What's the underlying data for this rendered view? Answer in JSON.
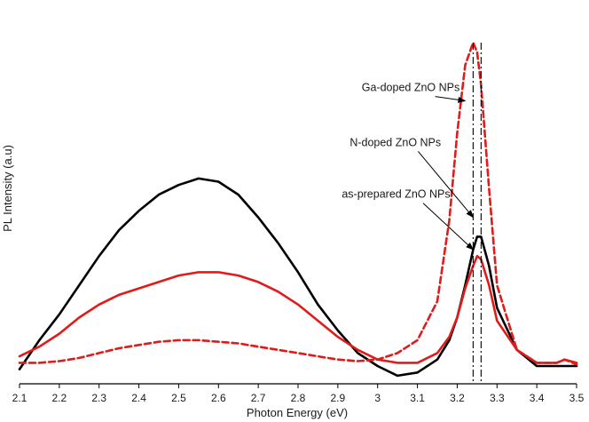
{
  "chart_data": {
    "type": "line",
    "title": "",
    "xlabel": "Photon Energy (eV)",
    "ylabel": "PL Intensity (a.u)",
    "xlim": [
      2.1,
      3.5
    ],
    "ylim": [
      0,
      1
    ],
    "x_ticks": [
      "2.1",
      "2.2",
      "2.3",
      "2.4",
      "2.5",
      "2.6",
      "2.7",
      "2.8",
      "2.9",
      "3",
      "3.1",
      "3.2",
      "3.3",
      "3.4",
      "3.5"
    ],
    "y_ticks_shown": false,
    "grid": false,
    "legend": "none",
    "series": [
      {
        "color": "#000000",
        "style": "solid",
        "x": [
          2.1,
          2.15,
          2.2,
          2.25,
          2.3,
          2.35,
          2.4,
          2.45,
          2.5,
          2.55,
          2.6,
          2.65,
          2.7,
          2.75,
          2.8,
          2.85,
          2.9,
          2.95,
          3.0,
          3.05,
          3.1,
          3.15,
          3.18,
          3.2,
          3.22,
          3.24,
          3.25,
          3.26,
          3.28,
          3.3,
          3.35,
          3.4,
          3.45,
          3.5
        ],
        "y": [
          -0.01,
          0.08,
          0.16,
          0.25,
          0.34,
          0.42,
          0.48,
          0.53,
          0.56,
          0.58,
          0.57,
          0.53,
          0.46,
          0.38,
          0.29,
          0.19,
          0.11,
          0.04,
          0.0,
          -0.03,
          -0.02,
          0.02,
          0.08,
          0.15,
          0.25,
          0.36,
          0.4,
          0.4,
          0.31,
          0.18,
          0.05,
          0.0,
          0.0,
          0.0
        ]
      },
      {
        "color": "#e01b1b",
        "style": "solid",
        "x": [
          2.1,
          2.15,
          2.2,
          2.25,
          2.3,
          2.35,
          2.4,
          2.45,
          2.5,
          2.55,
          2.6,
          2.65,
          2.7,
          2.75,
          2.8,
          2.85,
          2.9,
          2.95,
          3.0,
          3.05,
          3.1,
          3.15,
          3.18,
          3.2,
          3.22,
          3.24,
          3.25,
          3.26,
          3.28,
          3.3,
          3.35,
          3.4,
          3.45,
          3.47,
          3.5
        ],
        "y": [
          0.03,
          0.06,
          0.1,
          0.15,
          0.19,
          0.22,
          0.24,
          0.26,
          0.28,
          0.29,
          0.29,
          0.28,
          0.26,
          0.23,
          0.19,
          0.14,
          0.09,
          0.05,
          0.02,
          0.01,
          0.01,
          0.04,
          0.09,
          0.15,
          0.24,
          0.31,
          0.34,
          0.33,
          0.25,
          0.14,
          0.05,
          0.01,
          0.01,
          0.02,
          0.01
        ]
      },
      {
        "color": "#e01b1b",
        "style": "dashed",
        "x": [
          2.1,
          2.15,
          2.2,
          2.25,
          2.3,
          2.35,
          2.4,
          2.45,
          2.5,
          2.55,
          2.6,
          2.65,
          2.7,
          2.75,
          2.8,
          2.85,
          2.9,
          2.95,
          3.0,
          3.05,
          3.1,
          3.15,
          3.18,
          3.2,
          3.22,
          3.24,
          3.25,
          3.26,
          3.28,
          3.3,
          3.35,
          3.4,
          3.45,
          3.47,
          3.5
        ],
        "y": [
          0.01,
          0.01,
          0.015,
          0.025,
          0.04,
          0.055,
          0.065,
          0.075,
          0.08,
          0.08,
          0.075,
          0.07,
          0.06,
          0.05,
          0.04,
          0.03,
          0.02,
          0.015,
          0.02,
          0.04,
          0.08,
          0.2,
          0.45,
          0.72,
          0.93,
          1.0,
          0.97,
          0.87,
          0.55,
          0.25,
          0.05,
          0.01,
          0.01,
          0.02,
          0.005
        ]
      }
    ],
    "reference_lines": [
      {
        "x": 3.24,
        "style": "dash-dot",
        "color": "#000000"
      },
      {
        "x": 3.26,
        "style": "dash-dot",
        "color": "#000000"
      }
    ],
    "annotations": [
      {
        "text": "Ga-doped ZnO NPs",
        "x_text": 2.96,
        "y_text": 0.85,
        "arrow_to_x": 3.22,
        "arrow_to_y": 0.82
      },
      {
        "text": "N-doped ZnO NPs",
        "x_text": 2.93,
        "y_text": 0.68,
        "arrow_to_x": 3.24,
        "arrow_to_y": 0.46
      },
      {
        "text": "as-prepared ZnO NPs",
        "x_text": 2.91,
        "y_text": 0.52,
        "arrow_to_x": 3.24,
        "arrow_to_y": 0.36
      }
    ]
  }
}
